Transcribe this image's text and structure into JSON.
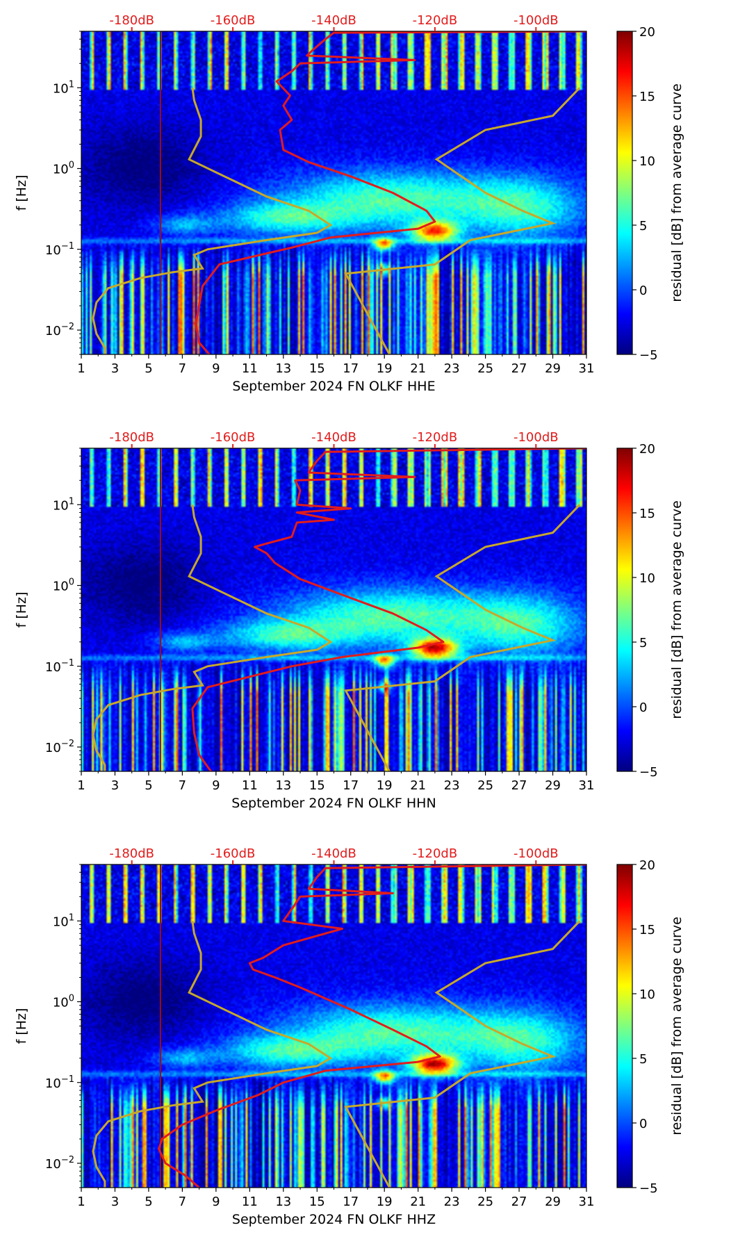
{
  "colors": {
    "noise_model_line": "#c8a82a",
    "average_curve_line": "#e21c1c",
    "top_axis_text": "#e21c1c",
    "jet_scale": [
      "#00007f",
      "#0000ff",
      "#007fff",
      "#00ffff",
      "#7fff7f",
      "#ffff00",
      "#ff7f00",
      "#ff0000",
      "#7f0000"
    ]
  },
  "chart_data": [
    {
      "type": "heatmap",
      "xlabel": "September 2024 FN OLKF  HHE",
      "ylabel": "f [Hz]",
      "x_ticks": [
        "1",
        "3",
        "5",
        "7",
        "9",
        "11",
        "13",
        "15",
        "17",
        "19",
        "21",
        "23",
        "25",
        "27",
        "29",
        "31"
      ],
      "xlim": [
        1,
        31
      ],
      "y_scale": "log",
      "ylim": [
        0.005,
        50
      ],
      "y_ticks": [
        {
          "value": 0.01,
          "base": "10",
          "exp": "−2"
        },
        {
          "value": 0.1,
          "base": "10",
          "exp": "−1"
        },
        {
          "value": 1,
          "base": "10",
          "exp": "0"
        },
        {
          "value": 10,
          "base": "10",
          "exp": "1"
        }
      ],
      "top_ticks": [
        "-180dB",
        "-160dB",
        "-140dB",
        "-120dB",
        "-100dB"
      ],
      "top_tick_positions": [
        4.0,
        10.0,
        16.0,
        22.0,
        28.0
      ],
      "colorbar": {
        "label": "residual [dB] from average curve",
        "range": [
          -5,
          20
        ],
        "ticks": [
          "−5",
          "0",
          "5",
          "10",
          "15",
          "20"
        ],
        "tick_values": [
          -5,
          0,
          5,
          10,
          15,
          20
        ]
      },
      "vertical_marker_day": 5.7,
      "noise_model_curve": [
        [
          2.4,
          0.005
        ],
        [
          2.4,
          0.006
        ],
        [
          1.9,
          0.009
        ],
        [
          1.7,
          0.014
        ],
        [
          1.9,
          0.022
        ],
        [
          2.6,
          0.033
        ],
        [
          4.5,
          0.044
        ],
        [
          6.4,
          0.052
        ],
        [
          8.2,
          0.058
        ],
        [
          7.7,
          0.085
        ],
        [
          8.5,
          0.1
        ],
        [
          12.0,
          0.13
        ],
        [
          15.0,
          0.16
        ],
        [
          15.8,
          0.2
        ],
        [
          14.5,
          0.3
        ],
        [
          12.0,
          0.45
        ],
        [
          9.5,
          0.8
        ],
        [
          7.4,
          1.3
        ],
        [
          8.1,
          2.5
        ],
        [
          8.1,
          4.0
        ],
        [
          7.7,
          7.0
        ],
        [
          7.6,
          10.0
        ]
      ],
      "noise_model_curve_high": [
        [
          19.3,
          0.005
        ],
        [
          16.7,
          0.05
        ],
        [
          22.0,
          0.065
        ],
        [
          24.1,
          0.13
        ],
        [
          29.0,
          0.21
        ],
        [
          27.2,
          0.3
        ],
        [
          25.0,
          0.5
        ],
        [
          22.1,
          1.3
        ],
        [
          25.0,
          3.0
        ],
        [
          29.0,
          4.5
        ],
        [
          30.6,
          10.0
        ]
      ],
      "average_curve": [
        [
          8.6,
          0.005
        ],
        [
          8.0,
          0.007
        ],
        [
          7.8,
          0.012
        ],
        [
          8.2,
          0.035
        ],
        [
          9.2,
          0.065
        ],
        [
          13.5,
          0.105
        ],
        [
          15.8,
          0.14
        ],
        [
          21.0,
          0.18
        ],
        [
          22.0,
          0.22
        ],
        [
          21.5,
          0.3
        ],
        [
          19.5,
          0.5
        ],
        [
          17.0,
          0.8
        ],
        [
          14.5,
          1.2
        ],
        [
          13.0,
          1.7
        ],
        [
          12.8,
          3.0
        ],
        [
          13.5,
          4.0
        ],
        [
          13.0,
          6.0
        ],
        [
          13.4,
          8.0
        ],
        [
          12.6,
          12.0
        ],
        [
          13.5,
          16.0
        ],
        [
          14.0,
          20.0
        ],
        [
          20.8,
          22.0
        ],
        [
          14.4,
          25.0
        ],
        [
          14.8,
          30.0
        ],
        [
          15.5,
          40.0
        ],
        [
          16.0,
          48.0
        ],
        [
          31.0,
          50.0
        ]
      ]
    },
    {
      "type": "heatmap",
      "xlabel": "September 2024 FN OLKF  HHN",
      "ylabel": "f [Hz]",
      "x_ticks": [
        "1",
        "3",
        "5",
        "7",
        "9",
        "11",
        "13",
        "15",
        "17",
        "19",
        "21",
        "23",
        "25",
        "27",
        "29",
        "31"
      ],
      "xlim": [
        1,
        31
      ],
      "y_scale": "log",
      "ylim": [
        0.005,
        50
      ],
      "y_ticks": [
        {
          "value": 0.01,
          "base": "10",
          "exp": "−2"
        },
        {
          "value": 0.1,
          "base": "10",
          "exp": "−1"
        },
        {
          "value": 1,
          "base": "10",
          "exp": "0"
        },
        {
          "value": 10,
          "base": "10",
          "exp": "1"
        }
      ],
      "top_ticks": [
        "-180dB",
        "-160dB",
        "-140dB",
        "-120dB",
        "-100dB"
      ],
      "top_tick_positions": [
        4.0,
        10.0,
        16.0,
        22.0,
        28.0
      ],
      "colorbar": {
        "label": "residual [dB] from average curve",
        "range": [
          -5,
          20
        ],
        "ticks": [
          "−5",
          "0",
          "5",
          "10",
          "15",
          "20"
        ],
        "tick_values": [
          -5,
          0,
          5,
          10,
          15,
          20
        ]
      },
      "vertical_marker_day": 5.7,
      "noise_model_curve": [
        [
          2.4,
          0.005
        ],
        [
          2.4,
          0.006
        ],
        [
          1.9,
          0.009
        ],
        [
          1.7,
          0.014
        ],
        [
          1.9,
          0.022
        ],
        [
          2.6,
          0.033
        ],
        [
          4.5,
          0.044
        ],
        [
          6.4,
          0.052
        ],
        [
          8.2,
          0.058
        ],
        [
          7.7,
          0.085
        ],
        [
          8.5,
          0.1
        ],
        [
          12.0,
          0.13
        ],
        [
          15.0,
          0.16
        ],
        [
          15.8,
          0.2
        ],
        [
          14.5,
          0.3
        ],
        [
          12.0,
          0.45
        ],
        [
          9.5,
          0.8
        ],
        [
          7.4,
          1.3
        ],
        [
          8.1,
          2.5
        ],
        [
          8.1,
          4.0
        ],
        [
          7.7,
          7.0
        ],
        [
          7.6,
          10.0
        ]
      ],
      "noise_model_curve_high": [
        [
          19.3,
          0.005
        ],
        [
          16.7,
          0.05
        ],
        [
          22.0,
          0.065
        ],
        [
          24.1,
          0.13
        ],
        [
          29.0,
          0.21
        ],
        [
          27.2,
          0.3
        ],
        [
          25.0,
          0.5
        ],
        [
          22.1,
          1.3
        ],
        [
          25.0,
          3.0
        ],
        [
          29.0,
          4.5
        ],
        [
          30.6,
          10.0
        ]
      ],
      "average_curve": [
        [
          8.7,
          0.005
        ],
        [
          8.0,
          0.008
        ],
        [
          7.7,
          0.015
        ],
        [
          7.6,
          0.03
        ],
        [
          8.5,
          0.055
        ],
        [
          13.5,
          0.1
        ],
        [
          16.5,
          0.13
        ],
        [
          21.0,
          0.17
        ],
        [
          22.5,
          0.2
        ],
        [
          21.5,
          0.28
        ],
        [
          19.5,
          0.45
        ],
        [
          17.0,
          0.7
        ],
        [
          14.0,
          1.2
        ],
        [
          12.5,
          1.9
        ],
        [
          12.0,
          2.5
        ],
        [
          11.3,
          3.0
        ],
        [
          12.0,
          3.3
        ],
        [
          13.5,
          4.0
        ],
        [
          13.8,
          6.0
        ],
        [
          16.0,
          6.5
        ],
        [
          13.8,
          8.0
        ],
        [
          17.0,
          9.0
        ],
        [
          13.8,
          10.0
        ],
        [
          14.0,
          15.0
        ],
        [
          13.7,
          20.0
        ],
        [
          20.8,
          22.0
        ],
        [
          14.5,
          25.0
        ],
        [
          15.0,
          35.0
        ],
        [
          15.5,
          45.0
        ],
        [
          31.0,
          50.0
        ]
      ]
    },
    {
      "type": "heatmap",
      "xlabel": "September 2024 FN OLKF  HHZ",
      "ylabel": "f [Hz]",
      "x_ticks": [
        "1",
        "3",
        "5",
        "7",
        "9",
        "11",
        "13",
        "15",
        "17",
        "19",
        "21",
        "23",
        "25",
        "27",
        "29",
        "31"
      ],
      "xlim": [
        1,
        31
      ],
      "y_scale": "log",
      "ylim": [
        0.005,
        50
      ],
      "y_ticks": [
        {
          "value": 0.01,
          "base": "10",
          "exp": "−2"
        },
        {
          "value": 0.1,
          "base": "10",
          "exp": "−1"
        },
        {
          "value": 1,
          "base": "10",
          "exp": "0"
        },
        {
          "value": 10,
          "base": "10",
          "exp": "1"
        }
      ],
      "top_ticks": [
        "-180dB",
        "-160dB",
        "-140dB",
        "-120dB",
        "-100dB"
      ],
      "top_tick_positions": [
        4.0,
        10.0,
        16.0,
        22.0,
        28.0
      ],
      "colorbar": {
        "label": "residual [dB] from average curve",
        "range": [
          -5,
          20
        ],
        "ticks": [
          "−5",
          "0",
          "5",
          "10",
          "15",
          "20"
        ],
        "tick_values": [
          -5,
          0,
          5,
          10,
          15,
          20
        ]
      },
      "vertical_marker_day": 5.7,
      "noise_model_curve": [
        [
          2.4,
          0.005
        ],
        [
          2.4,
          0.006
        ],
        [
          1.9,
          0.009
        ],
        [
          1.7,
          0.014
        ],
        [
          1.9,
          0.022
        ],
        [
          2.6,
          0.033
        ],
        [
          4.5,
          0.044
        ],
        [
          6.4,
          0.052
        ],
        [
          8.2,
          0.058
        ],
        [
          7.7,
          0.085
        ],
        [
          8.5,
          0.1
        ],
        [
          12.0,
          0.13
        ],
        [
          15.0,
          0.16
        ],
        [
          15.8,
          0.2
        ],
        [
          14.5,
          0.3
        ],
        [
          12.0,
          0.45
        ],
        [
          9.5,
          0.8
        ],
        [
          7.4,
          1.3
        ],
        [
          8.1,
          2.5
        ],
        [
          8.1,
          4.0
        ],
        [
          7.7,
          7.0
        ],
        [
          7.6,
          10.0
        ]
      ],
      "noise_model_curve_high": [
        [
          19.3,
          0.005
        ],
        [
          16.7,
          0.05
        ],
        [
          22.0,
          0.065
        ],
        [
          24.1,
          0.13
        ],
        [
          29.0,
          0.21
        ],
        [
          27.2,
          0.3
        ],
        [
          25.0,
          0.5
        ],
        [
          22.1,
          1.3
        ],
        [
          25.0,
          3.0
        ],
        [
          29.0,
          4.5
        ],
        [
          30.6,
          10.0
        ]
      ],
      "average_curve": [
        [
          8.0,
          0.005
        ],
        [
          7.2,
          0.007
        ],
        [
          6.0,
          0.01
        ],
        [
          5.6,
          0.015
        ],
        [
          5.8,
          0.02
        ],
        [
          7.0,
          0.03
        ],
        [
          9.0,
          0.045
        ],
        [
          11.5,
          0.07
        ],
        [
          13.0,
          0.1
        ],
        [
          15.5,
          0.14
        ],
        [
          21.0,
          0.18
        ],
        [
          22.3,
          0.21
        ],
        [
          21.5,
          0.28
        ],
        [
          19.5,
          0.45
        ],
        [
          17.0,
          0.8
        ],
        [
          14.0,
          1.5
        ],
        [
          12.5,
          2.0
        ],
        [
          11.2,
          2.5
        ],
        [
          11.0,
          3.0
        ],
        [
          11.8,
          3.5
        ],
        [
          13.0,
          5.0
        ],
        [
          16.5,
          8.0
        ],
        [
          13.0,
          10.0
        ],
        [
          13.6,
          15.0
        ],
        [
          14.0,
          20.0
        ],
        [
          19.5,
          22.0
        ],
        [
          14.5,
          25.0
        ],
        [
          15.0,
          35.0
        ],
        [
          15.5,
          45.0
        ],
        [
          31.0,
          50.0
        ]
      ]
    }
  ]
}
